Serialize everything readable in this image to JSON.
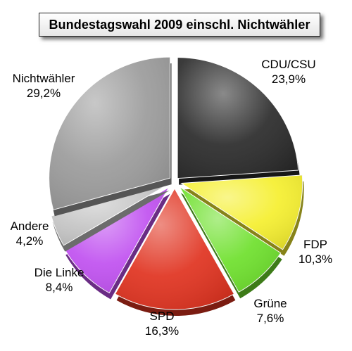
{
  "chart_data": {
    "type": "pie",
    "title": "Bundestagswahl 2009 einschl. Nichtwähler",
    "slices": [
      {
        "label": "CDU/CSU",
        "value_label": "23,9%",
        "value": 23.9,
        "color": "#2a2a2a"
      },
      {
        "label": "FDP",
        "value_label": "10,3%",
        "value": 10.3,
        "color": "#f5ef2e"
      },
      {
        "label": "Grüne",
        "value_label": "7,6%",
        "value": 7.6,
        "color": "#6ee02c"
      },
      {
        "label": "SPD",
        "value_label": "16,3%",
        "value": 16.3,
        "color": "#e0321f"
      },
      {
        "label": "Die Linke",
        "value_label": "8,4%",
        "value": 8.4,
        "color": "#c050f0"
      },
      {
        "label": "Andere",
        "value_label": "4,2%",
        "value": 4.2,
        "color": "#c4c4c4"
      },
      {
        "label": "Nichtwähler",
        "value_label": "29,2%",
        "value": 29.2,
        "color": "#9b9b9b"
      }
    ]
  }
}
